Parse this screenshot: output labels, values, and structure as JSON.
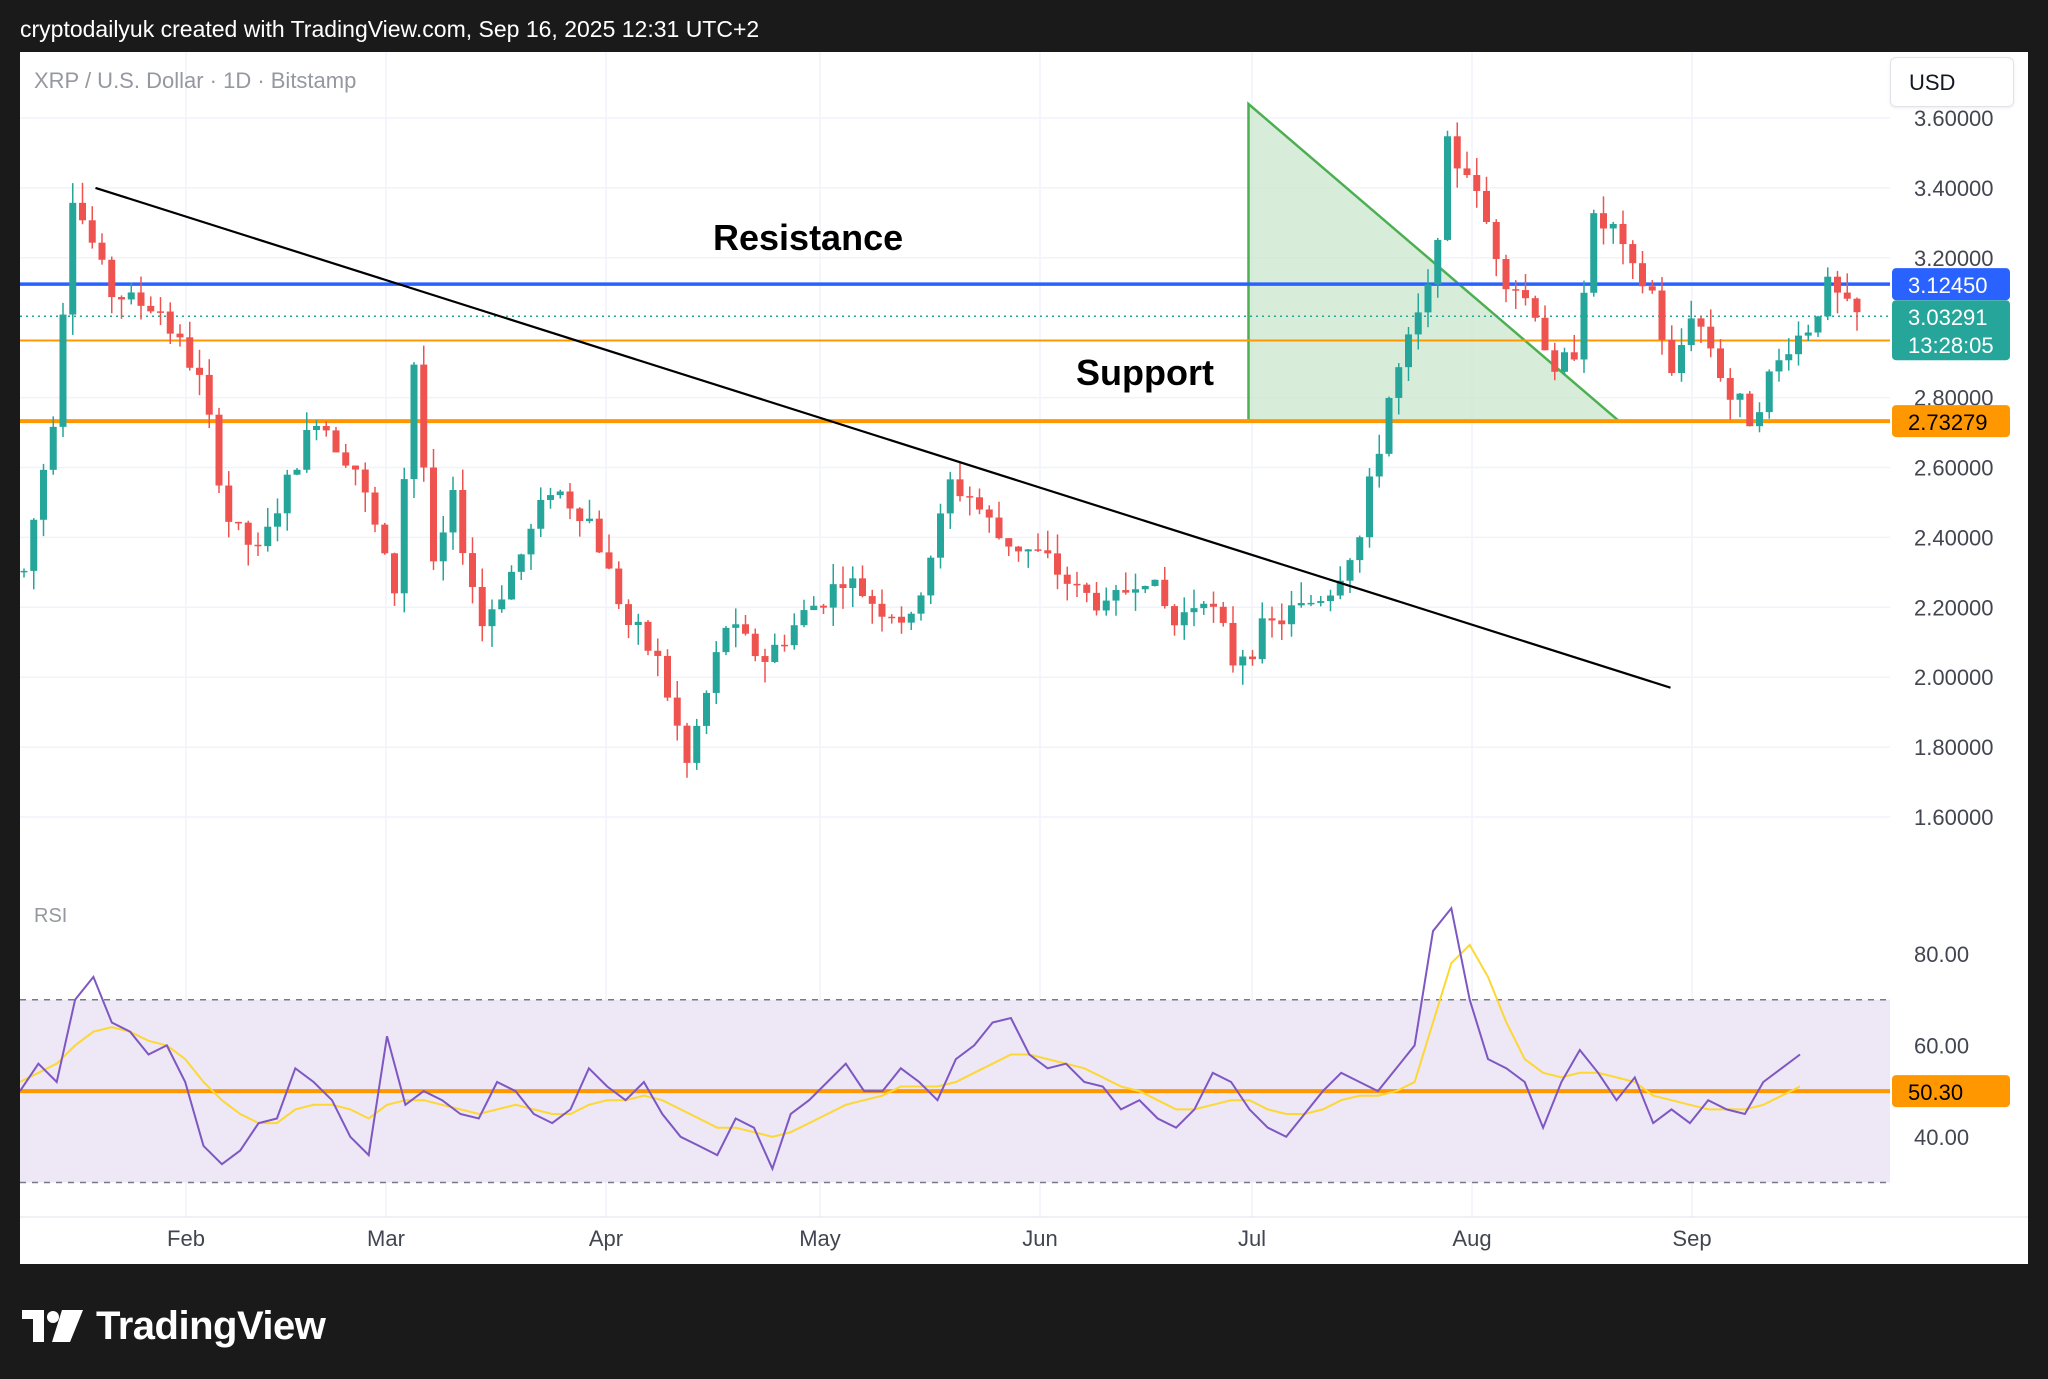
{
  "header": {
    "attribution": "cryptodailyuk created with TradingView.com, Sep 16, 2025 12:31 UTC+2"
  },
  "footer": {
    "logo_text": "TradingView"
  },
  "chart_header": {
    "symbol": "XRP / U.S. Dollar · 1D · Bitstamp",
    "currency": "USD"
  },
  "colors": {
    "up": "#26a69a",
    "down": "#ef5350",
    "resistance": "#2962ff",
    "support": "#ff9800",
    "triangle_fill": "#c8e6c9",
    "triangle_stroke": "#4caf50",
    "rsi_line": "#7e57c2",
    "rsi_ma": "#fdd835",
    "rsi_band": "#ede7f6"
  },
  "chart_data": [
    {
      "type": "candlestick",
      "title": "XRP / U.S. Dollar · 1D · Bitstamp",
      "price_axis": [
        "3.60000",
        "3.40000",
        "3.20000",
        "2.80000",
        "2.60000",
        "2.40000",
        "2.20000",
        "2.00000",
        "1.80000",
        "1.60000"
      ],
      "time_axis": [
        "Feb",
        "Mar",
        "Apr",
        "May",
        "Jun",
        "Jul",
        "Aug",
        "Sep"
      ],
      "ylim": [
        1.45,
        3.72
      ],
      "grid": true,
      "annotations": [
        {
          "text": "Resistance",
          "price": 3.1245
        },
        {
          "text": "Support",
          "price": 2.73279
        }
      ],
      "levels": [
        {
          "label": "3.12450",
          "price": 3.1245,
          "kind": "resistance"
        },
        {
          "label": "2.96341",
          "price": 2.96341,
          "kind": "support-minor"
        },
        {
          "label": "2.73279",
          "price": 2.73279,
          "kind": "support"
        }
      ],
      "last_price": {
        "label": "3.03291",
        "countdown": "13:28:05",
        "price": 3.03291
      },
      "trendline": {
        "from": {
          "day": 2,
          "price": 3.4
        },
        "to": {
          "day": 198,
          "price": 1.97
        }
      },
      "triangle": {
        "apex_day": 164,
        "base_price": 2.73279,
        "left_day": 126,
        "top_price": 3.64
      },
      "key_points": [
        {
          "day": 0,
          "price": 2.3
        },
        {
          "day": 3,
          "price": 2.75
        },
        {
          "day": 5,
          "price": 3.38
        },
        {
          "day": 9,
          "price": 3.1
        },
        {
          "day": 14,
          "price": 3.05
        },
        {
          "day": 18,
          "price": 2.85
        },
        {
          "day": 21,
          "price": 2.45
        },
        {
          "day": 24,
          "price": 2.35
        },
        {
          "day": 27,
          "price": 2.55
        },
        {
          "day": 30,
          "price": 2.75
        },
        {
          "day": 34,
          "price": 2.6
        },
        {
          "day": 38,
          "price": 2.25
        },
        {
          "day": 40,
          "price": 2.9
        },
        {
          "day": 42,
          "price": 2.3
        },
        {
          "day": 44,
          "price": 2.5
        },
        {
          "day": 47,
          "price": 2.15
        },
        {
          "day": 51,
          "price": 2.35
        },
        {
          "day": 54,
          "price": 2.55
        },
        {
          "day": 58,
          "price": 2.45
        },
        {
          "day": 62,
          "price": 2.15
        },
        {
          "day": 65,
          "price": 2.05
        },
        {
          "day": 68,
          "price": 1.75
        },
        {
          "day": 72,
          "price": 2.15
        },
        {
          "day": 76,
          "price": 2.05
        },
        {
          "day": 80,
          "price": 2.18
        },
        {
          "day": 84,
          "price": 2.28
        },
        {
          "day": 88,
          "price": 2.2
        },
        {
          "day": 91,
          "price": 2.15
        },
        {
          "day": 95,
          "price": 2.55
        },
        {
          "day": 97,
          "price": 2.52
        },
        {
          "day": 100,
          "price": 2.4
        },
        {
          "day": 104,
          "price": 2.35
        },
        {
          "day": 108,
          "price": 2.25
        },
        {
          "day": 111,
          "price": 2.2
        },
        {
          "day": 115,
          "price": 2.3
        },
        {
          "day": 118,
          "price": 2.15
        },
        {
          "day": 121,
          "price": 2.25
        },
        {
          "day": 124,
          "price": 2.05
        },
        {
          "day": 128,
          "price": 2.15
        },
        {
          "day": 131,
          "price": 2.2
        },
        {
          "day": 134,
          "price": 2.25
        },
        {
          "day": 137,
          "price": 2.4
        },
        {
          "day": 140,
          "price": 2.8
        },
        {
          "day": 142,
          "price": 2.95
        },
        {
          "day": 144,
          "price": 3.1
        },
        {
          "day": 146,
          "price": 3.5
        },
        {
          "day": 148,
          "price": 3.45
        },
        {
          "day": 150,
          "price": 3.3
        },
        {
          "day": 152,
          "price": 3.15
        },
        {
          "day": 155,
          "price": 3.05
        },
        {
          "day": 157,
          "price": 2.85
        },
        {
          "day": 159,
          "price": 2.95
        },
        {
          "day": 161,
          "price": 3.3
        },
        {
          "day": 163,
          "price": 3.28
        },
        {
          "day": 165,
          "price": 3.15
        },
        {
          "day": 167,
          "price": 3.1
        },
        {
          "day": 169,
          "price": 2.85
        },
        {
          "day": 171,
          "price": 3.05
        },
        {
          "day": 173,
          "price": 2.95
        },
        {
          "day": 175,
          "price": 2.8
        },
        {
          "day": 177,
          "price": 2.75
        },
        {
          "day": 179,
          "price": 2.85
        },
        {
          "day": 181,
          "price": 2.95
        },
        {
          "day": 183,
          "price": 3.0
        },
        {
          "day": 185,
          "price": 3.12
        },
        {
          "day": 187,
          "price": 3.05
        },
        {
          "day": 188,
          "price": 3.03
        }
      ]
    },
    {
      "type": "line",
      "title": "RSI",
      "rsi_axis": [
        "80.00",
        "60.00",
        "40.00"
      ],
      "ylim": [
        30,
        92
      ],
      "band": [
        70,
        30
      ],
      "mid_level": 50,
      "last_value": "50.30",
      "series": [
        {
          "values": [
            50,
            56,
            52,
            70,
            75,
            65,
            63,
            58,
            60,
            52,
            38,
            34,
            37,
            43,
            44,
            55,
            52,
            48,
            40,
            36,
            62,
            47,
            50,
            48,
            45,
            44,
            52,
            50,
            45,
            43,
            46,
            55,
            51,
            48,
            52,
            45,
            40,
            38,
            36,
            44,
            42,
            33,
            45,
            48,
            52,
            56,
            50,
            50,
            55,
            52,
            48,
            57,
            60,
            65,
            66,
            58,
            55,
            56,
            52,
            51,
            46,
            48,
            44,
            42,
            46,
            54,
            52,
            46,
            42,
            40,
            45,
            50,
            54,
            52,
            50,
            55,
            60,
            85,
            90,
            70,
            57,
            55,
            52,
            42,
            52,
            59,
            54,
            48,
            53,
            43,
            46,
            43,
            48,
            46,
            45,
            52,
            55,
            58
          ]
        },
        {
          "values": [
            52,
            54,
            56,
            60,
            63,
            64,
            63,
            61,
            60,
            57,
            52,
            48,
            45,
            43,
            43,
            46,
            47,
            47,
            46,
            44,
            47,
            48,
            48,
            47,
            46,
            45,
            46,
            47,
            46,
            45,
            45,
            47,
            48,
            48,
            49,
            48,
            46,
            44,
            42,
            42,
            41,
            40,
            41,
            43,
            45,
            47,
            48,
            49,
            51,
            51,
            51,
            52,
            54,
            56,
            58,
            58,
            57,
            56,
            55,
            53,
            51,
            50,
            48,
            46,
            46,
            47,
            48,
            48,
            46,
            45,
            45,
            46,
            48,
            49,
            49,
            50,
            52,
            65,
            78,
            82,
            75,
            65,
            57,
            54,
            53,
            54,
            54,
            53,
            52,
            49,
            48,
            47,
            46,
            46,
            46,
            47,
            49,
            51
          ]
        }
      ]
    }
  ]
}
